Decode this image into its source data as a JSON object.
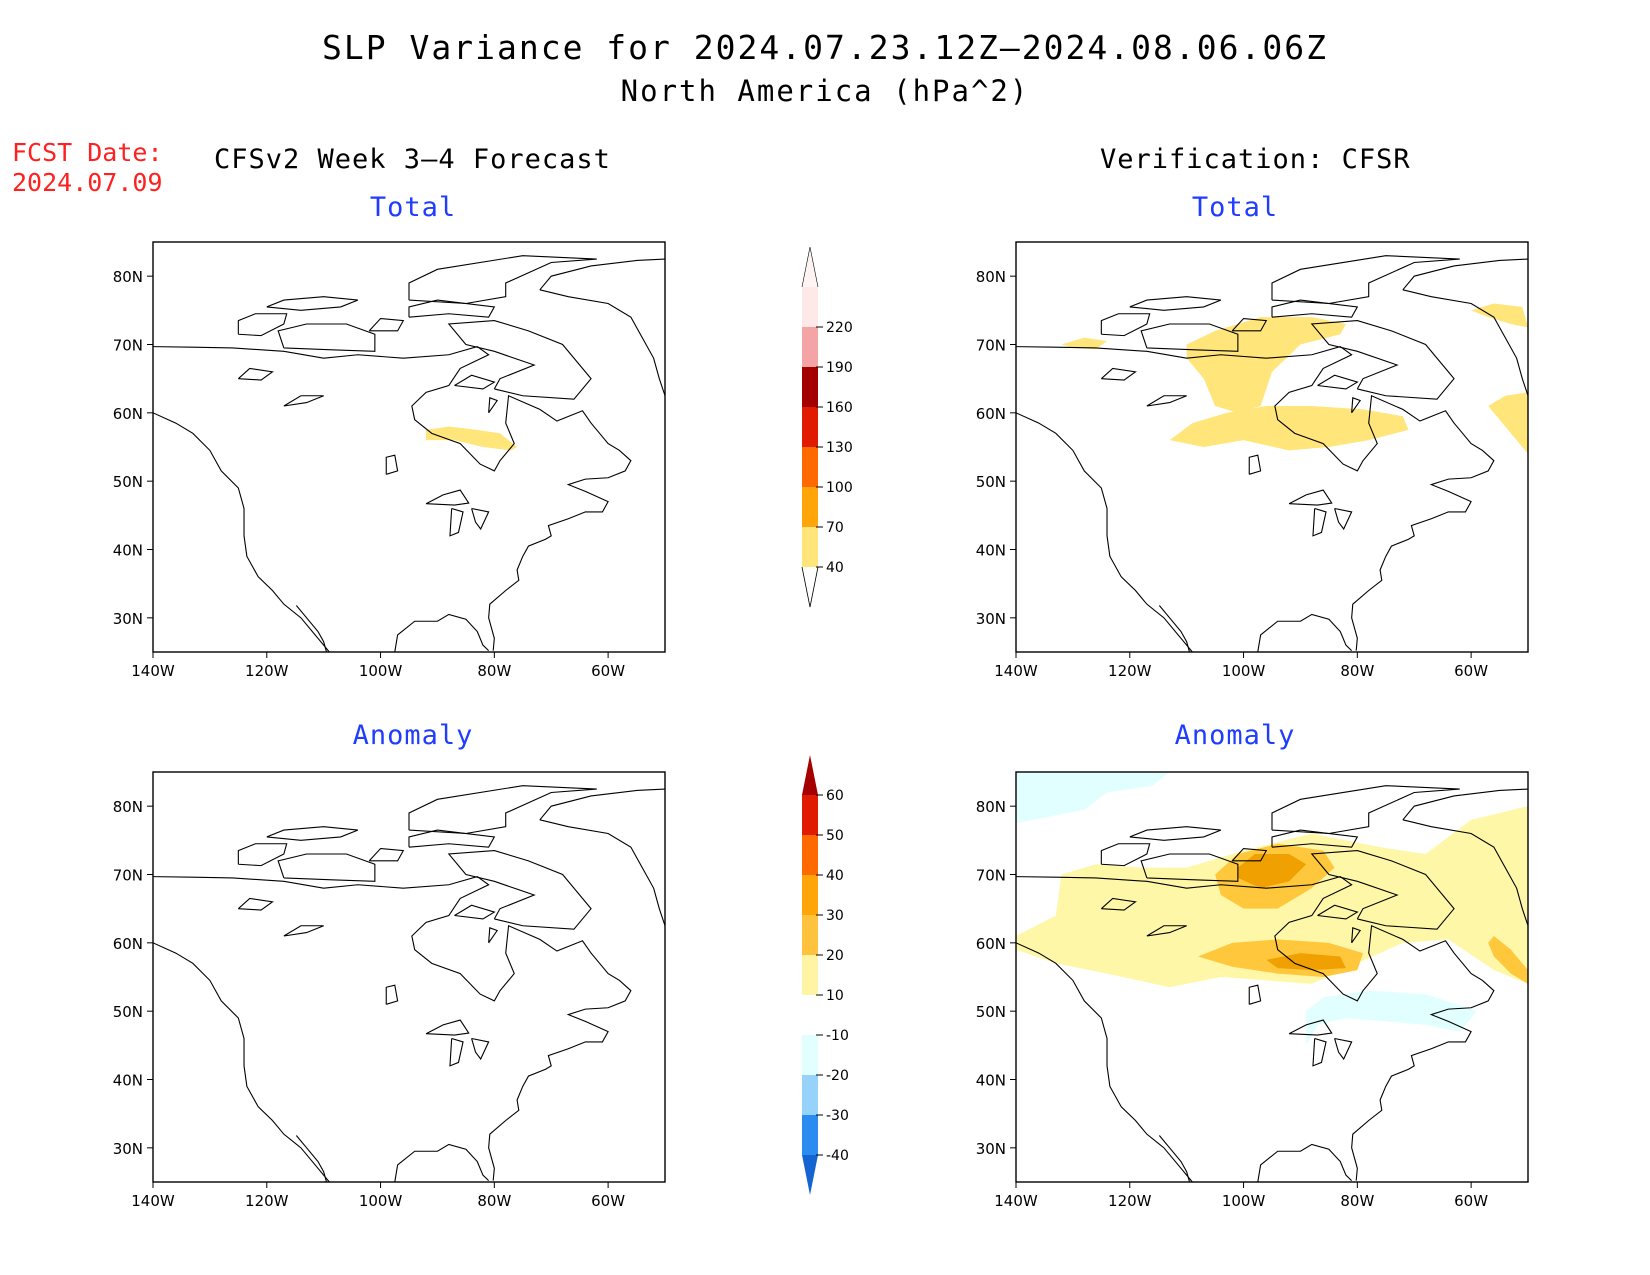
{
  "header": {
    "title": "SLP Variance for 2024.07.23.12Z—2024.08.06.06Z",
    "subtitle": "North America (hPa^2)",
    "fcst_label": "FCST Date:",
    "fcst_date": "2024.07.09",
    "left_header": "CFSv2 Week 3—4 Forecast",
    "right_header": "Verification: CFSR"
  },
  "panels": [
    {
      "id": "fc-total",
      "title": "Total",
      "kind": "total",
      "regions": [
        {
          "level": 40,
          "lon": [
            -92,
            -70
          ],
          "lat": [
            54.5,
            58.5
          ],
          "shape": "patch"
        }
      ]
    },
    {
      "id": "vf-total",
      "title": "Total",
      "kind": "total",
      "regions": [
        {
          "level": 40,
          "shape": "band-north",
          "lon": [
            -110,
            -80
          ],
          "lat": [
            60,
            74
          ]
        },
        {
          "level": 40,
          "shape": "band-south",
          "lon": [
            -113,
            -71
          ],
          "lat": [
            54,
            62
          ]
        },
        {
          "level": 40,
          "shape": "ne-cap",
          "lon": [
            -60,
            -50
          ],
          "lat": [
            72,
            76
          ]
        },
        {
          "level": 40,
          "shape": "ne-blob",
          "lon": [
            -57,
            -50
          ],
          "lat": [
            54,
            64
          ]
        },
        {
          "level": 40,
          "shape": "west-strip",
          "lon": [
            -132,
            -124
          ],
          "lat": [
            69,
            71
          ]
        }
      ]
    },
    {
      "id": "fc-anom",
      "title": "Anomaly",
      "kind": "anom",
      "regions": []
    },
    {
      "id": "vf-anom",
      "title": "Anomaly",
      "kind": "anom",
      "regions": [
        {
          "level": 10,
          "shape": "wide-warm",
          "lon": [
            -140,
            -50
          ],
          "lat": [
            53,
            78
          ]
        },
        {
          "level": 20,
          "shape": "north-core",
          "lon": [
            -105,
            -84
          ],
          "lat": [
            64,
            74
          ]
        },
        {
          "level": 30,
          "shape": "north-inner",
          "lon": [
            -101,
            -89
          ],
          "lat": [
            67,
            73
          ]
        },
        {
          "level": 20,
          "shape": "south-core",
          "lon": [
            -108,
            -79
          ],
          "lat": [
            55,
            61
          ]
        },
        {
          "level": 30,
          "shape": "south-inner",
          "lon": [
            -96,
            -82
          ],
          "lat": [
            56,
            59
          ]
        },
        {
          "level": 20,
          "shape": "east-streak",
          "lon": [
            -56,
            -50
          ],
          "lat": [
            54,
            62
          ]
        },
        {
          "level": -10,
          "shape": "cool-nw",
          "lon": [
            -140,
            -113
          ],
          "lat": [
            76,
            85
          ]
        },
        {
          "level": -10,
          "shape": "cool-se",
          "lon": [
            -89,
            -59
          ],
          "lat": [
            43,
            53
          ]
        }
      ]
    }
  ],
  "axes": {
    "lon_ticks": [
      "140W",
      "120W",
      "100W",
      "80W",
      "60W"
    ],
    "lon_values": [
      -140,
      -120,
      -100,
      -80,
      -60
    ],
    "lat_ticks": [
      "80N",
      "70N",
      "60N",
      "50N",
      "40N",
      "30N"
    ],
    "lat_values": [
      80,
      70,
      60,
      50,
      40,
      30
    ],
    "lon_range": [
      -140,
      -50
    ],
    "lat_range": [
      25,
      85
    ]
  },
  "colorbar_total": {
    "labels": [
      "40",
      "70",
      "100",
      "130",
      "160",
      "190",
      "220"
    ],
    "colors": [
      "#ffe57a",
      "#ffa50a",
      "#ff6a00",
      "#e01b00",
      "#a50000",
      "#f4a4a4",
      "#ffe8e8"
    ]
  },
  "colorbar_anom": {
    "labels": [
      "-40",
      "-30",
      "-20",
      "-10",
      "10",
      "20",
      "30",
      "40",
      "50",
      "60"
    ],
    "colors": [
      "#1464d2",
      "#2a8cf0",
      "#96d2fa",
      "#e1ffff",
      "#ffffff",
      "#fff4a4",
      "#ffc23c",
      "#ffa50a",
      "#ff6a00",
      "#e01b00",
      "#a50000"
    ]
  },
  "shade_colors": {
    "total_40": "#ffe57a",
    "anom_10": "#fff7a8",
    "anom_20": "#ffc83c",
    "anom_30": "#f0a000",
    "anom_m10": "#e1ffff"
  }
}
